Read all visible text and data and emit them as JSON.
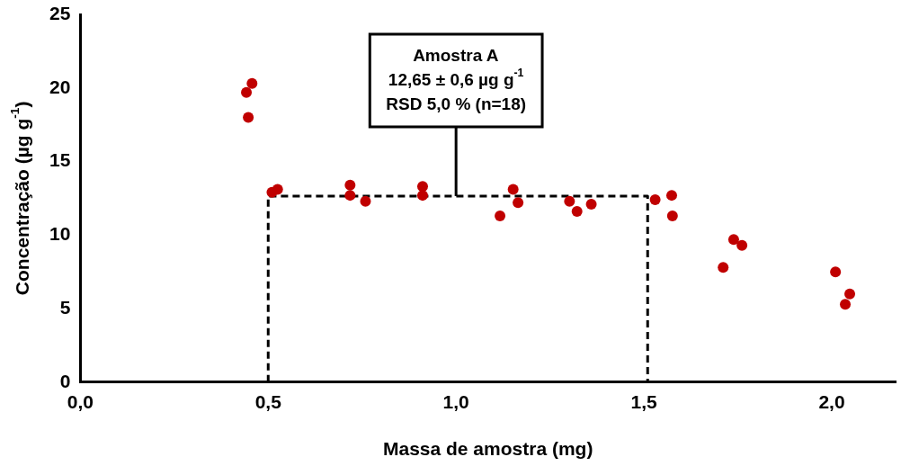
{
  "chart_data": {
    "type": "scatter",
    "xlabel": "Massa de amostra (mg)",
    "ylabel": "Concentração (µg g$^{-1}$)",
    "xlim": [
      0,
      2.17
    ],
    "xticks": [
      {
        "value": 0,
        "label": "0,0"
      },
      {
        "value": 0.5,
        "label": "0,5"
      },
      {
        "value": 1,
        "label": "1,0"
      },
      {
        "value": 1.5,
        "label": "1,5"
      },
      {
        "value": 2,
        "label": "2,0"
      }
    ],
    "ylim": [
      0,
      25
    ],
    "yticks": [
      0,
      5,
      10,
      15,
      20,
      25
    ],
    "grid": false,
    "legend": false,
    "marker": "circle",
    "series": [
      {
        "type": "scatter",
        "color": "#c00000",
        "x": [
          0.457,
          0.442,
          0.447,
          0.51,
          0.525,
          0.718,
          0.718,
          0.759,
          0.911,
          0.911,
          1.117,
          1.152,
          1.165,
          1.302,
          1.322,
          1.36,
          1.53,
          1.574,
          1.576,
          1.711,
          1.739,
          1.761,
          2.01,
          2.036,
          2.048
        ],
        "values": [
          20.3,
          19.7,
          18.0,
          12.9,
          13.1,
          13.4,
          12.7,
          12.3,
          13.3,
          12.7,
          11.3,
          13.1,
          12.2,
          12.3,
          11.6,
          12.1,
          12.4,
          12.7,
          11.3,
          7.8,
          9.7,
          9.3,
          7.5,
          5.3,
          6.0
        ]
      },
      {
        "type": "line",
        "color": "#000000",
        "line_style": "dashed",
        "marker": "none",
        "x": [
          0.5,
          0.5,
          1.51,
          1.51
        ],
        "values": [
          0,
          12.65,
          12.65,
          0
        ]
      }
    ],
    "annotations": [
      "Amostra A",
      "12,65 ± 0,6 µg g$^{-1}$",
      {
        "text": "RSD 5,0 % (n=18)",
        "x": 1.0,
        "y": 12.65
      }
    ]
  }
}
